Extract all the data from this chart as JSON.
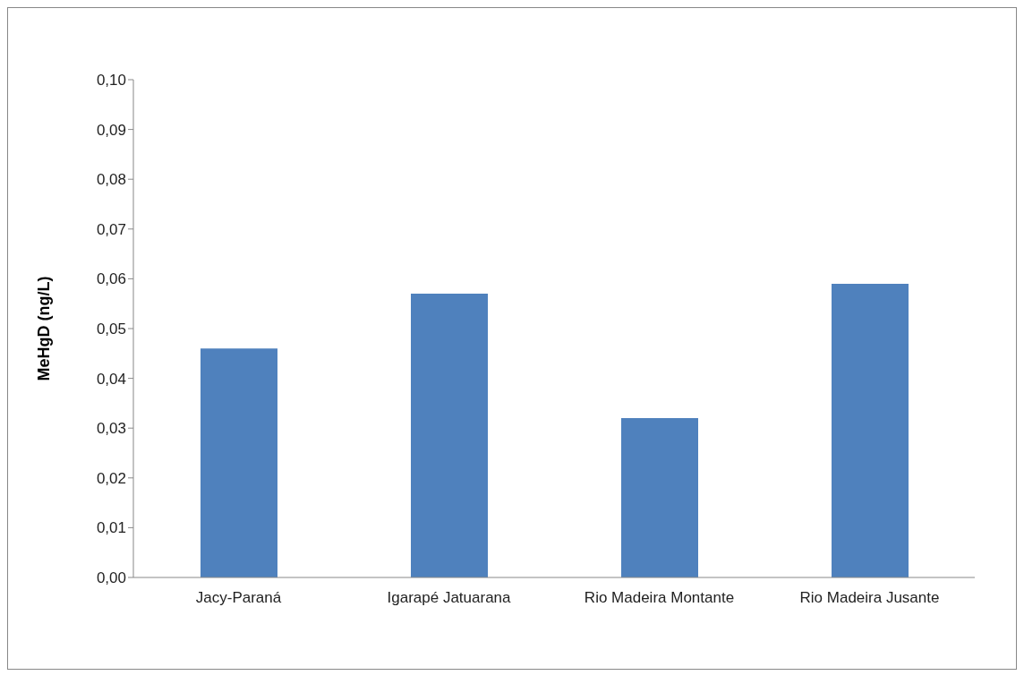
{
  "chart_data": {
    "type": "bar",
    "ylabel": "MeHgD (ng/L)",
    "categories": [
      "Jacy-Paraná",
      "Igarapé Jatuarana",
      "Rio Madeira Montante",
      "Rio Madeira Jusante"
    ],
    "values": [
      0.046,
      0.057,
      0.032,
      0.059
    ],
    "color": "#4f81bd",
    "ylim": [
      0,
      0.1
    ],
    "yticks": [
      {
        "value": 0,
        "label": "0,00"
      },
      {
        "value": 0.01,
        "label": "0,01"
      },
      {
        "value": 0.02,
        "label": "0,02"
      },
      {
        "value": 0.03,
        "label": "0,03"
      },
      {
        "value": 0.04,
        "label": "0,04"
      },
      {
        "value": 0.05,
        "label": "0,05"
      },
      {
        "value": 0.06,
        "label": "0,06"
      },
      {
        "value": 0.07,
        "label": "0,07"
      },
      {
        "value": 0.08,
        "label": "0,08"
      },
      {
        "value": 0.09,
        "label": "0,09"
      },
      {
        "value": 0.1,
        "label": "0,10"
      }
    ],
    "grid": false,
    "legend": false
  }
}
